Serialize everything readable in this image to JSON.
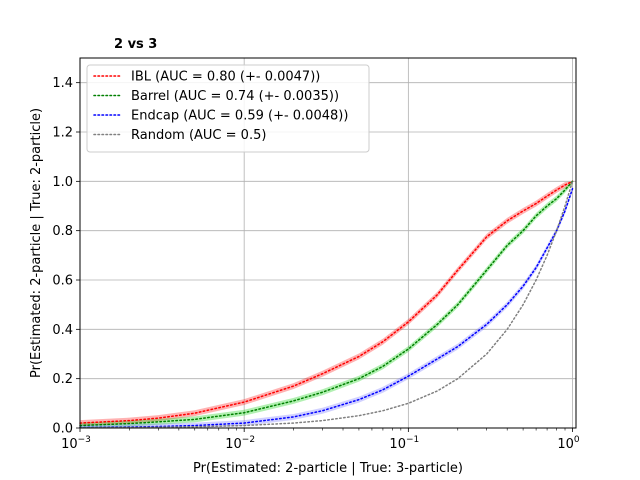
{
  "chart_data": {
    "type": "line",
    "title": "2 vs 3",
    "xlabel": "Pr(Estimated: 2-particle | True: 3-particle)",
    "ylabel": "Pr(Estimated: 2-particle | True: 2-particle)",
    "xscale": "log",
    "xlim": [
      0.001,
      1.05
    ],
    "ylim": [
      0,
      1.5
    ],
    "grid": true,
    "legend_position": "top-left",
    "x_ticks": [
      {
        "value": 0.001,
        "base": "10",
        "exp": "−3"
      },
      {
        "value": 0.01,
        "base": "10",
        "exp": "−2"
      },
      {
        "value": 0.1,
        "base": "10",
        "exp": "−1"
      },
      {
        "value": 1,
        "base": "10",
        "exp": "0"
      }
    ],
    "y_ticks": [
      "0.0",
      "0.2",
      "0.4",
      "0.6",
      "0.8",
      "1.0",
      "1.2",
      "1.4"
    ],
    "series": [
      {
        "name": "IBL (AUC = 0.80 (+- 0.0047))",
        "color": "#ff0000",
        "band_color": "#ff0000",
        "x": [
          0.001,
          0.002,
          0.003,
          0.005,
          0.01,
          0.02,
          0.03,
          0.05,
          0.07,
          0.1,
          0.15,
          0.2,
          0.3,
          0.4,
          0.5,
          0.6,
          0.7,
          0.8,
          0.9,
          1.0
        ],
        "y": [
          0.02,
          0.03,
          0.04,
          0.06,
          0.105,
          0.17,
          0.22,
          0.29,
          0.35,
          0.43,
          0.54,
          0.64,
          0.775,
          0.84,
          0.88,
          0.91,
          0.94,
          0.965,
          0.985,
          1.0
        ]
      },
      {
        "name": "Barrel (AUC = 0.74 (+- 0.0035))",
        "color": "#008000",
        "band_color": "#00cc00",
        "x": [
          0.001,
          0.002,
          0.003,
          0.005,
          0.01,
          0.02,
          0.03,
          0.05,
          0.07,
          0.1,
          0.15,
          0.2,
          0.3,
          0.4,
          0.5,
          0.6,
          0.7,
          0.8,
          0.9,
          1.0
        ],
        "y": [
          0.01,
          0.018,
          0.025,
          0.035,
          0.062,
          0.11,
          0.145,
          0.2,
          0.25,
          0.32,
          0.42,
          0.5,
          0.64,
          0.74,
          0.8,
          0.86,
          0.9,
          0.93,
          0.965,
          1.0
        ]
      },
      {
        "name": "Endcap (AUC = 0.59 (+- 0.0048))",
        "color": "#0000ff",
        "band_color": "#6666ff",
        "x": [
          0.001,
          0.002,
          0.003,
          0.005,
          0.01,
          0.02,
          0.03,
          0.05,
          0.07,
          0.1,
          0.15,
          0.2,
          0.3,
          0.4,
          0.5,
          0.6,
          0.7,
          0.8,
          0.9,
          1.0
        ],
        "y": [
          0.002,
          0.004,
          0.006,
          0.01,
          0.02,
          0.045,
          0.07,
          0.115,
          0.155,
          0.21,
          0.28,
          0.33,
          0.42,
          0.5,
          0.575,
          0.65,
          0.73,
          0.8,
          0.88,
          0.97
        ]
      },
      {
        "name": "Random (AUC = 0.5)",
        "color": "#808080",
        "band_color": "",
        "x": [
          0.001,
          0.002,
          0.003,
          0.005,
          0.01,
          0.02,
          0.03,
          0.05,
          0.07,
          0.1,
          0.15,
          0.2,
          0.3,
          0.4,
          0.5,
          0.6,
          0.7,
          0.8,
          0.9,
          1.0
        ],
        "y": [
          0.001,
          0.002,
          0.003,
          0.005,
          0.01,
          0.02,
          0.03,
          0.05,
          0.07,
          0.1,
          0.15,
          0.2,
          0.3,
          0.4,
          0.5,
          0.6,
          0.7,
          0.8,
          0.9,
          1.0
        ]
      }
    ]
  }
}
